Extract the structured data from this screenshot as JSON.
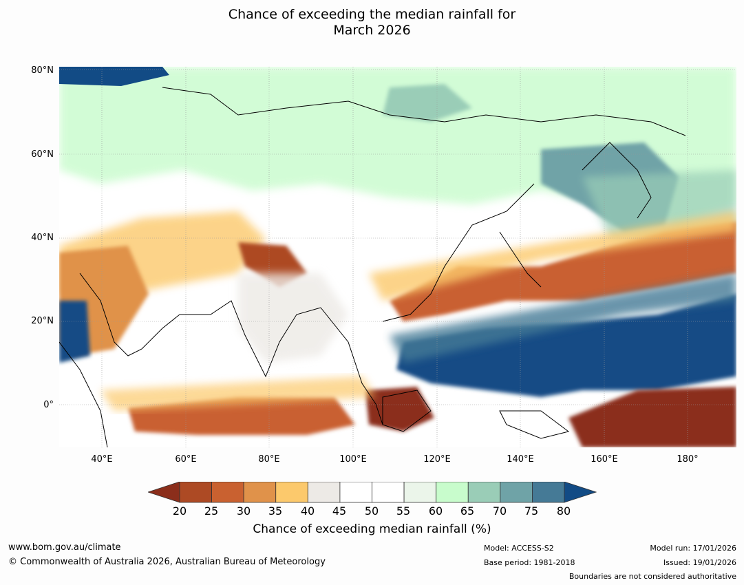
{
  "header": {
    "title_line1": "Chance of exceeding the median rainfall for",
    "title_line2": "March 2026"
  },
  "map": {
    "lat_labels": [
      "80°N",
      "60°N",
      "40°N",
      "20°N",
      "0°"
    ],
    "lon_labels": [
      "40°E",
      "60°E",
      "80°E",
      "100°E",
      "120°E",
      "140°E",
      "160°E",
      "180°"
    ],
    "lat_values": [
      80,
      60,
      40,
      20,
      0
    ],
    "lon_values": [
      40,
      60,
      80,
      100,
      120,
      140,
      160,
      180
    ],
    "lon_range": [
      30,
      190
    ],
    "lat_range": [
      -10,
      80
    ]
  },
  "colorbar": {
    "title": "Chance of exceeding median rainfall (%)",
    "tick_labels": [
      "20",
      "25",
      "30",
      "35",
      "40",
      "45",
      "50",
      "55",
      "60",
      "65",
      "70",
      "75",
      "80"
    ],
    "low_extend_color": "#8b2e1b",
    "high_extend_color": "#124b85",
    "colors": [
      "#ad4a24",
      "#c96130",
      "#e0924a",
      "#fcc96c",
      "#edeae6",
      "#ffffff",
      "#ffffff",
      "#ebf5ea",
      "#c8fccc",
      "#9acdb7",
      "#6fa3a7",
      "#457a96"
    ]
  },
  "footer": {
    "website": "www.bom.gov.au/climate",
    "copyright": "© Commonwealth of Australia 2026, Australian Bureau of Meteorology",
    "model": "Model: ACCESS-S2",
    "base_period": "Base period: 1981-2018",
    "model_run": "Model run: 17/01/2026",
    "issued": "Issued: 19/01/2026",
    "disclaimer": "Boundaries are not considered authoritative"
  }
}
